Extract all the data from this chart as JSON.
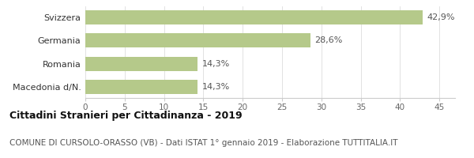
{
  "categories": [
    "Macedonia d/N.",
    "Romania",
    "Germania",
    "Svizzera"
  ],
  "values": [
    14.3,
    14.3,
    28.6,
    42.9
  ],
  "labels": [
    "14,3%",
    "14,3%",
    "28,6%",
    "42,9%"
  ],
  "bar_color": "#b5c98a",
  "xlim": [
    0,
    47
  ],
  "xticks": [
    0,
    5,
    10,
    15,
    20,
    25,
    30,
    35,
    40,
    45
  ],
  "title": "Cittadini Stranieri per Cittadinanza - 2019",
  "subtitle": "COMUNE DI CURSOLO-ORASSO (VB) - Dati ISTAT 1° gennaio 2019 - Elaborazione TUTTITALIA.IT",
  "title_fontsize": 9,
  "subtitle_fontsize": 7.5,
  "label_fontsize": 8,
  "ytick_fontsize": 8,
  "xtick_fontsize": 7.5,
  "background_color": "#ffffff"
}
